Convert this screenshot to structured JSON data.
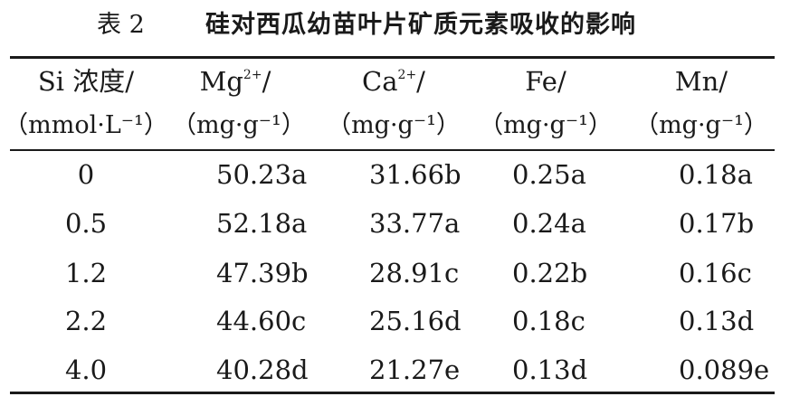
{
  "caption": {
    "label": "表 2",
    "title": "硅对西瓜幼苗叶片矿质元素吸收的影响"
  },
  "table": {
    "headers": [
      {
        "line1": "Si 浓度/",
        "line1_sup": "",
        "line1_tail": "",
        "line2": "（mmol·L⁻¹）"
      },
      {
        "line1": "Mg",
        "line1_sup": "2+",
        "line1_tail": "/",
        "line2": "（mg·g⁻¹）"
      },
      {
        "line1": "Ca",
        "line1_sup": "2+",
        "line1_tail": "/",
        "line2": "（mg·g⁻¹）"
      },
      {
        "line1": "Fe/",
        "line1_sup": "",
        "line1_tail": "",
        "line2": "（mg·g⁻¹）"
      },
      {
        "line1": "Mn/",
        "line1_sup": "",
        "line1_tail": "",
        "line2": "（mg·g⁻¹）"
      }
    ],
    "rows": [
      [
        "0",
        "50.23a",
        "31.66b",
        "0.25a",
        "0.18a"
      ],
      [
        "0.5",
        "52.18a",
        "33.77a",
        "0.24a",
        "0.17b"
      ],
      [
        "1.2",
        "47.39b",
        "28.91c",
        "0.22b",
        "0.16c"
      ],
      [
        "2.2",
        "44.60c",
        "25.16d",
        "0.18c",
        "0.13d"
      ],
      [
        "4.0",
        "40.28d",
        "21.27e",
        "0.13d",
        "0.089e"
      ]
    ]
  }
}
